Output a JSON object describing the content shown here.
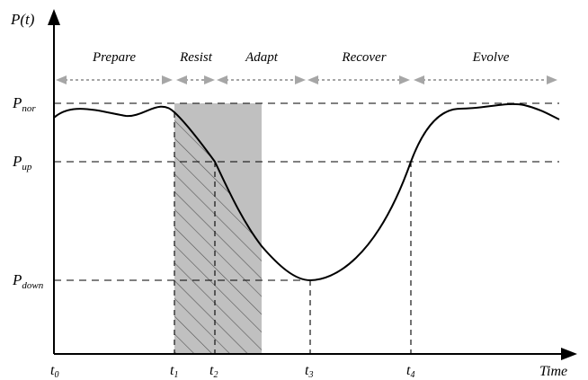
{
  "y_axis": {
    "label": "P(t)",
    "levels": [
      {
        "key": "nor",
        "main": "P",
        "sub": "nor"
      },
      {
        "key": "up",
        "main": "P",
        "sub": "up"
      },
      {
        "key": "down",
        "main": "P",
        "sub": "down"
      }
    ]
  },
  "x_axis": {
    "label": "Time",
    "ticks": [
      {
        "key": "t0",
        "main": "t",
        "sub": "0"
      },
      {
        "key": "t1",
        "main": "t",
        "sub": "1"
      },
      {
        "key": "t2",
        "main": "t",
        "sub": "2"
      },
      {
        "key": "t3",
        "main": "t",
        "sub": "3"
      },
      {
        "key": "t4",
        "main": "t",
        "sub": "4"
      }
    ]
  },
  "phases": [
    "Prepare",
    "Resist",
    "Adapt",
    "Recover",
    "Evolve"
  ],
  "colors": {
    "axis": "#000000",
    "curve": "#000000",
    "shaded_region": "#c0c0c0",
    "hatch": "#555555",
    "phase_arrows": "#a6a6a6"
  }
}
